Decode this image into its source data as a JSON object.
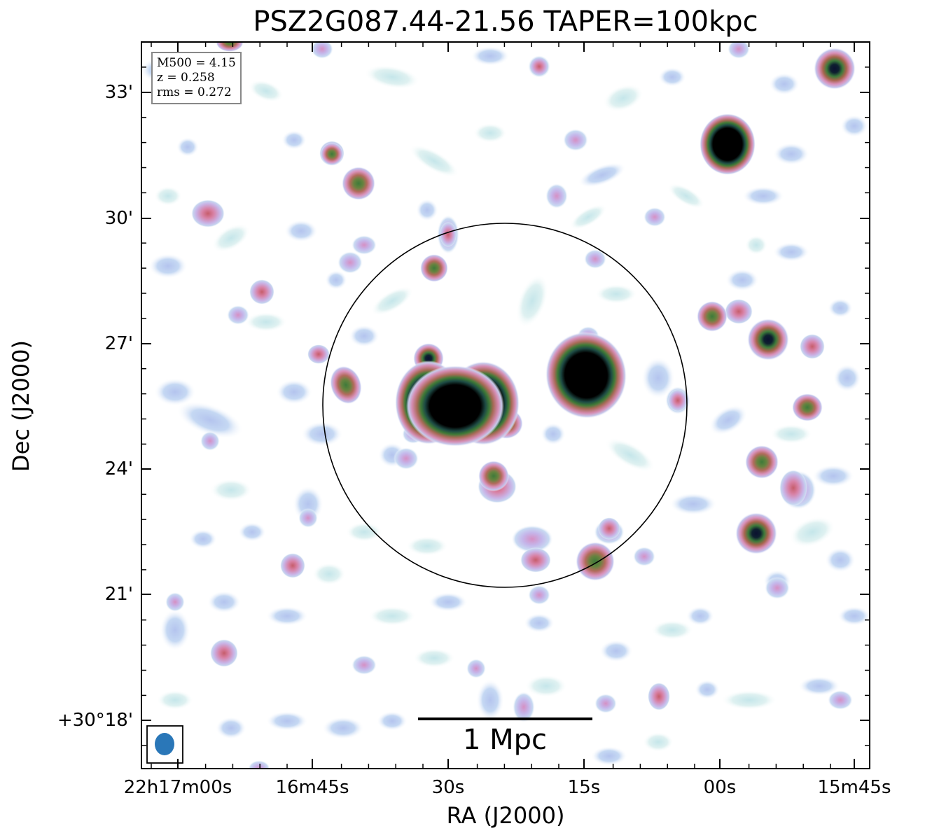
{
  "title": "PSZ2G087.44-21.56 TAPER=100kpc",
  "xlabel": "RA (J2000)",
  "ylabel": "Dec (J2000)",
  "x_ticks": [
    "22h17m00s",
    "16m45s",
    "30s",
    "15s",
    "00s",
    "15m45s"
  ],
  "y_ticks": [
    "33'",
    "30'",
    "27'",
    "24'",
    "21'",
    "+30°18'"
  ],
  "info": {
    "mass": "M500 = 4.15",
    "redshift": "z = 0.258",
    "rms": "rms = 0.272"
  },
  "scalebar": {
    "label": "1 Mpc"
  },
  "colors": {
    "beam": "#2a77b8",
    "circle": "#000000",
    "frame": "#000000"
  },
  "icons": {
    "beam": "beam-ellipse-icon"
  }
}
